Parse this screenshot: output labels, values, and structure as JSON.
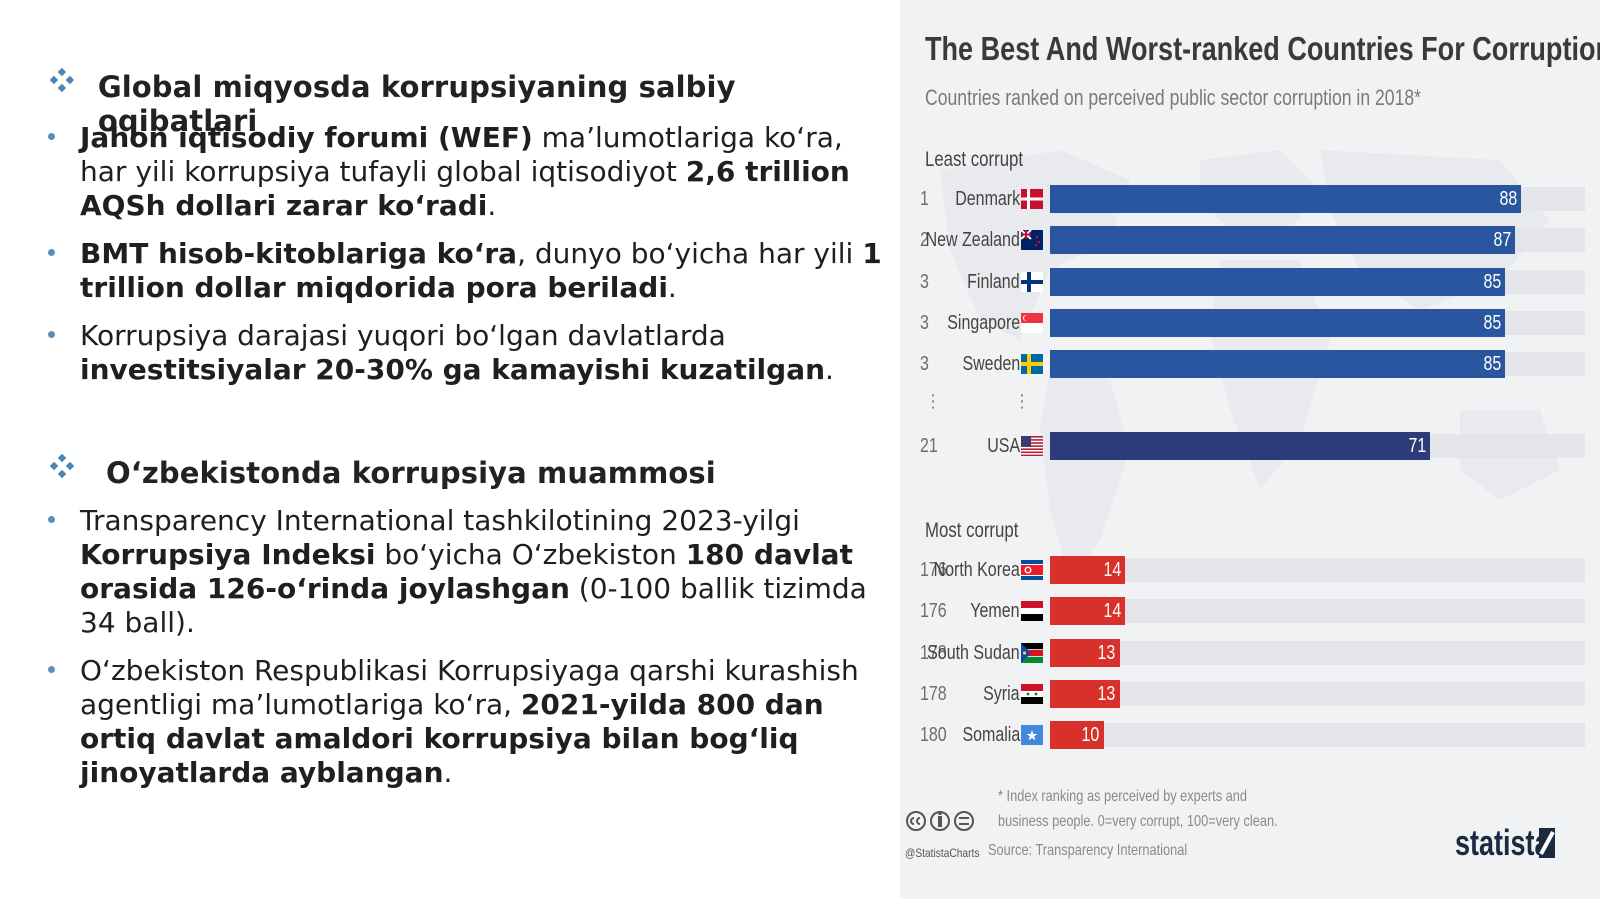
{
  "left": {
    "section1": {
      "title": "Global miqyosda korrupsiyaning salbiy oqibatlari"
    },
    "bullets1": [
      {
        "parts": [
          {
            "t": "Jahon iqtisodiy forumi (WEF)",
            "b": true
          },
          {
            "t": " ma’lumotlariga ko‘ra, har yili korrupsiya tufayli global iqtisodiyot ",
            "b": false
          },
          {
            "t": "2,6 trillion AQSh dollari zarar ko‘radi",
            "b": true
          },
          {
            "t": ".",
            "b": false
          }
        ]
      },
      {
        "parts": [
          {
            "t": "BMT hisob-kitoblariga ko‘ra",
            "b": true
          },
          {
            "t": ", dunyo bo‘yicha har yili ",
            "b": false
          },
          {
            "t": "1 trillion dollar miqdorida pora beriladi",
            "b": true
          },
          {
            "t": ".",
            "b": false
          }
        ]
      },
      {
        "parts": [
          {
            "t": "Korrupsiya darajasi yuqori bo‘lgan davlatlarda ",
            "b": false
          },
          {
            "t": "investitsiyalar 20-30% ga kamayishi kuzatilgan",
            "b": true
          },
          {
            "t": ".",
            "b": false
          }
        ]
      }
    ],
    "section2": {
      "title": "O‘zbekistonda korrupsiya muammosi"
    },
    "bullets2": [
      {
        "parts": [
          {
            "t": "Transparency International tashkilotining 2023-yilgi ",
            "b": false
          },
          {
            "t": "Korrupsiya Indeksi",
            "b": true
          },
          {
            "t": " bo‘yicha O‘zbekiston ",
            "b": false
          },
          {
            "t": "180 davlat orasida 126-o‘rinda joylashgan",
            "b": true
          },
          {
            "t": " (0-100 ballik tizimda 34 ball).",
            "b": false
          }
        ]
      },
      {
        "parts": [
          {
            "t": "O‘zbekiston Respublikasi Korrupsiyaga qarshi kurashish agentligi ma’lumotlariga ko‘ra, ",
            "b": false
          },
          {
            "t": "2021-yilda 800 dan ortiq davlat amaldori korrupsiya bilan bog‘liq jinoyatlarda ayblangan",
            "b": true
          },
          {
            "t": ".",
            "b": false
          }
        ]
      }
    ],
    "colors": {
      "bullet": "#5b8fb8",
      "diamond": "#4a86b5"
    }
  },
  "chart_data": {
    "type": "bar",
    "orientation": "horizontal",
    "title": "The Best And Worst-ranked Countries For Corruption",
    "subtitle": "Countries ranked on perceived public sector corruption in 2018*",
    "xlim": [
      0,
      100
    ],
    "groups": [
      {
        "label": "Least corrupt",
        "color": "#2a56a0",
        "rows": [
          {
            "rank": "1",
            "country": "Denmark",
            "value": 88,
            "flag": "denmark"
          },
          {
            "rank": "2",
            "country": "New Zealand",
            "value": 87,
            "flag": "new-zealand"
          },
          {
            "rank": "3",
            "country": "Finland",
            "value": 85,
            "flag": "finland"
          },
          {
            "rank": "3",
            "country": "Singapore",
            "value": 85,
            "flag": "singapore"
          },
          {
            "rank": "3",
            "country": "Sweden",
            "value": 85,
            "flag": "sweden"
          },
          {
            "rank": "21",
            "country": "USA",
            "value": 71,
            "flag": "usa",
            "color": "#2d3c78"
          }
        ]
      },
      {
        "label": "Most corrupt",
        "color": "#d8302a",
        "rows": [
          {
            "rank": "176",
            "country": "North Korea",
            "value": 14,
            "flag": "north-korea"
          },
          {
            "rank": "176",
            "country": "Yemen",
            "value": 14,
            "flag": "yemen"
          },
          {
            "rank": "178",
            "country": "South Sudan",
            "value": 13,
            "flag": "south-sudan"
          },
          {
            "rank": "178",
            "country": "Syria",
            "value": 13,
            "flag": "syria"
          },
          {
            "rank": "180",
            "country": "Somalia",
            "value": 10,
            "flag": "somalia"
          }
        ]
      }
    ],
    "footnote_lines": [
      "* Index ranking as perceived by experts and",
      "business people. 0=very corrupt, 100=very clean."
    ],
    "source": "Source: Transparency International",
    "handle": "@StatistaCharts",
    "brand": "statista"
  }
}
